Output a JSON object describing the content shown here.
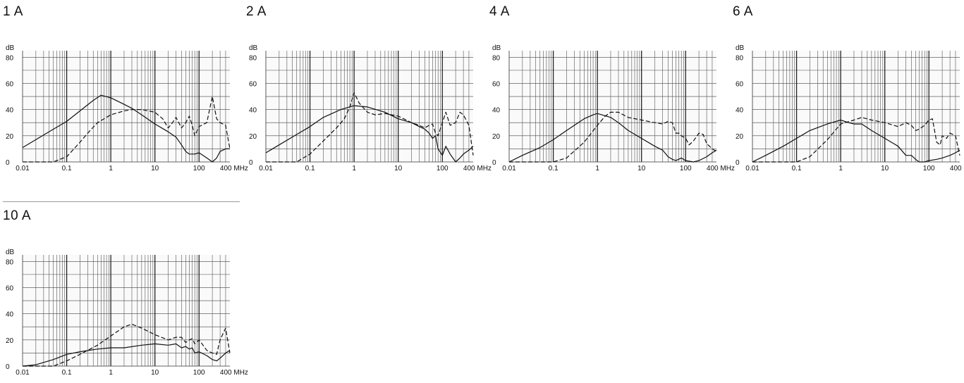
{
  "panels": [
    {
      "title": "1 A"
    },
    {
      "title": "2 A"
    },
    {
      "title": "4 A"
    },
    {
      "title": "6 A"
    },
    {
      "title": "10 A"
    }
  ],
  "chart_data": [
    {
      "type": "line",
      "title": "1 A",
      "ylabel": "dB",
      "xunit": "MHz",
      "xscale": "log",
      "xlim": [
        0.01,
        500
      ],
      "ylim": [
        0,
        85
      ],
      "xticks": [
        0.01,
        0.1,
        1,
        10,
        100,
        400
      ],
      "xtick_labels": [
        "0.01",
        "0.1",
        "1",
        "10",
        "100",
        "400 MHz"
      ],
      "yticks": [
        0,
        20,
        40,
        60,
        80
      ],
      "grid": true,
      "series": [
        {
          "style": "solid",
          "points": [
            [
              0.01,
              11
            ],
            [
              0.02,
              17
            ],
            [
              0.05,
              25
            ],
            [
              0.1,
              31
            ],
            [
              0.2,
              39
            ],
            [
              0.4,
              47
            ],
            [
              0.6,
              51
            ],
            [
              1,
              49
            ],
            [
              2,
              44
            ],
            [
              3,
              41
            ],
            [
              5,
              36
            ],
            [
              10,
              29
            ],
            [
              20,
              23
            ],
            [
              30,
              19
            ],
            [
              40,
              13
            ],
            [
              50,
              8
            ],
            [
              60,
              6
            ],
            [
              80,
              6
            ],
            [
              100,
              7
            ],
            [
              150,
              3
            ],
            [
              200,
              0
            ],
            [
              250,
              3
            ],
            [
              300,
              8
            ],
            [
              400,
              10
            ],
            [
              500,
              10
            ]
          ]
        },
        {
          "style": "dashed",
          "points": [
            [
              0.01,
              0
            ],
            [
              0.05,
              0
            ],
            [
              0.1,
              4
            ],
            [
              0.2,
              15
            ],
            [
              0.3,
              22
            ],
            [
              0.5,
              30
            ],
            [
              1,
              36
            ],
            [
              2,
              39
            ],
            [
              3,
              40
            ],
            [
              5,
              40
            ],
            [
              10,
              38
            ],
            [
              15,
              33
            ],
            [
              20,
              26
            ],
            [
              25,
              30
            ],
            [
              30,
              34
            ],
            [
              40,
              26
            ],
            [
              50,
              30
            ],
            [
              60,
              35
            ],
            [
              70,
              28
            ],
            [
              80,
              20
            ],
            [
              100,
              27
            ],
            [
              150,
              30
            ],
            [
              200,
              50
            ],
            [
              250,
              33
            ],
            [
              300,
              30
            ],
            [
              400,
              28
            ],
            [
              500,
              10
            ]
          ]
        }
      ]
    },
    {
      "type": "line",
      "title": "2 A",
      "ylabel": "dB",
      "xunit": "MHz",
      "xscale": "log",
      "xlim": [
        0.01,
        500
      ],
      "ylim": [
        0,
        85
      ],
      "xticks": [
        0.01,
        0.1,
        1,
        10,
        100,
        400
      ],
      "xtick_labels": [
        "0.01",
        "0.1",
        "1",
        "10",
        "100",
        "400 MHz"
      ],
      "yticks": [
        0,
        20,
        40,
        60,
        80
      ],
      "grid": true,
      "series": [
        {
          "style": "solid",
          "points": [
            [
              0.01,
              7
            ],
            [
              0.02,
              13
            ],
            [
              0.05,
              21
            ],
            [
              0.1,
              27
            ],
            [
              0.2,
              34
            ],
            [
              0.5,
              40
            ],
            [
              1,
              43
            ],
            [
              2,
              42
            ],
            [
              5,
              38
            ],
            [
              10,
              33
            ],
            [
              20,
              30
            ],
            [
              30,
              27
            ],
            [
              40,
              25
            ],
            [
              50,
              22
            ],
            [
              60,
              18
            ],
            [
              70,
              20
            ],
            [
              80,
              10
            ],
            [
              100,
              5
            ],
            [
              120,
              12
            ],
            [
              150,
              6
            ],
            [
              200,
              0
            ],
            [
              250,
              3
            ],
            [
              300,
              6
            ],
            [
              400,
              9
            ],
            [
              500,
              12
            ]
          ]
        },
        {
          "style": "dashed",
          "points": [
            [
              0.01,
              0
            ],
            [
              0.05,
              0
            ],
            [
              0.1,
              6
            ],
            [
              0.2,
              16
            ],
            [
              0.4,
              26
            ],
            [
              0.6,
              33
            ],
            [
              0.8,
              42
            ],
            [
              1,
              53
            ],
            [
              1.3,
              45
            ],
            [
              2,
              38
            ],
            [
              3,
              36
            ],
            [
              5,
              37
            ],
            [
              10,
              35
            ],
            [
              20,
              30
            ],
            [
              30,
              28
            ],
            [
              40,
              26
            ],
            [
              50,
              28
            ],
            [
              60,
              29
            ],
            [
              70,
              22
            ],
            [
              80,
              20
            ],
            [
              100,
              30
            ],
            [
              120,
              38
            ],
            [
              150,
              28
            ],
            [
              200,
              30
            ],
            [
              250,
              38
            ],
            [
              300,
              36
            ],
            [
              400,
              28
            ],
            [
              500,
              5
            ]
          ]
        }
      ]
    },
    {
      "type": "line",
      "title": "4 A",
      "ylabel": "dB",
      "xunit": "MHz",
      "xscale": "log",
      "xlim": [
        0.01,
        500
      ],
      "ylim": [
        0,
        85
      ],
      "xticks": [
        0.01,
        0.1,
        1,
        10,
        100,
        400
      ],
      "xtick_labels": [
        "0.01",
        "0.1",
        "1",
        "10",
        "100",
        "400 MHz"
      ],
      "yticks": [
        0,
        20,
        40,
        60,
        80
      ],
      "grid": true,
      "series": [
        {
          "style": "solid",
          "points": [
            [
              0.01,
              0
            ],
            [
              0.02,
              5
            ],
            [
              0.05,
              11
            ],
            [
              0.1,
              17
            ],
            [
              0.2,
              24
            ],
            [
              0.5,
              33
            ],
            [
              0.8,
              36
            ],
            [
              1,
              37
            ],
            [
              2,
              34
            ],
            [
              3,
              30
            ],
            [
              5,
              24
            ],
            [
              10,
              18
            ],
            [
              20,
              12
            ],
            [
              30,
              9
            ],
            [
              40,
              4
            ],
            [
              50,
              2
            ],
            [
              60,
              1
            ],
            [
              80,
              3
            ],
            [
              100,
              1
            ],
            [
              150,
              0
            ],
            [
              200,
              1
            ],
            [
              300,
              4
            ],
            [
              400,
              7
            ],
            [
              500,
              9
            ]
          ]
        },
        {
          "style": "dashed",
          "points": [
            [
              0.01,
              0
            ],
            [
              0.1,
              0
            ],
            [
              0.2,
              3
            ],
            [
              0.5,
              15
            ],
            [
              1,
              28
            ],
            [
              1.5,
              35
            ],
            [
              2,
              38
            ],
            [
              3,
              38
            ],
            [
              5,
              34
            ],
            [
              10,
              32
            ],
            [
              20,
              30
            ],
            [
              30,
              29
            ],
            [
              40,
              31
            ],
            [
              50,
              30
            ],
            [
              60,
              22
            ],
            [
              70,
              22
            ],
            [
              80,
              20
            ],
            [
              100,
              18
            ],
            [
              120,
              13
            ],
            [
              150,
              16
            ],
            [
              200,
              22
            ],
            [
              250,
              21
            ],
            [
              300,
              14
            ],
            [
              400,
              10
            ],
            [
              500,
              8
            ]
          ]
        }
      ]
    },
    {
      "type": "line",
      "title": "6 A",
      "ylabel": "dB",
      "xunit": "MHz",
      "xscale": "log",
      "xlim": [
        0.01,
        500
      ],
      "ylim": [
        0,
        85
      ],
      "xticks": [
        0.01,
        0.1,
        1,
        10,
        100,
        400
      ],
      "xtick_labels": [
        "0.01",
        "0.1",
        "1",
        "10",
        "100",
        "400 MHz"
      ],
      "yticks": [
        0,
        20,
        40,
        60,
        80
      ],
      "grid": true,
      "series": [
        {
          "style": "solid",
          "points": [
            [
              0.01,
              0
            ],
            [
              0.02,
              5
            ],
            [
              0.05,
              12
            ],
            [
              0.1,
              18
            ],
            [
              0.2,
              24
            ],
            [
              0.5,
              29
            ],
            [
              1,
              32
            ],
            [
              1.5,
              30
            ],
            [
              2,
              29
            ],
            [
              3,
              29
            ],
            [
              5,
              24
            ],
            [
              10,
              18
            ],
            [
              20,
              12
            ],
            [
              30,
              5
            ],
            [
              40,
              5
            ],
            [
              50,
              2
            ],
            [
              60,
              0
            ],
            [
              80,
              0
            ],
            [
              100,
              1
            ],
            [
              150,
              2
            ],
            [
              200,
              3
            ],
            [
              300,
              5
            ],
            [
              400,
              7
            ],
            [
              500,
              9
            ]
          ]
        },
        {
          "style": "dashed",
          "points": [
            [
              0.01,
              0
            ],
            [
              0.1,
              0
            ],
            [
              0.2,
              4
            ],
            [
              0.5,
              17
            ],
            [
              1,
              29
            ],
            [
              2,
              32
            ],
            [
              3,
              34
            ],
            [
              5,
              32
            ],
            [
              10,
              30
            ],
            [
              20,
              27
            ],
            [
              30,
              30
            ],
            [
              40,
              28
            ],
            [
              50,
              24
            ],
            [
              60,
              25
            ],
            [
              80,
              28
            ],
            [
              100,
              32
            ],
            [
              120,
              33
            ],
            [
              150,
              15
            ],
            [
              180,
              13
            ],
            [
              200,
              20
            ],
            [
              250,
              18
            ],
            [
              300,
              22
            ],
            [
              400,
              20
            ],
            [
              500,
              5
            ]
          ]
        }
      ]
    },
    {
      "type": "line",
      "title": "10 A",
      "ylabel": "dB",
      "xunit": "MHz",
      "xscale": "log",
      "xlim": [
        0.01,
        500
      ],
      "ylim": [
        0,
        85
      ],
      "xticks": [
        0.01,
        0.1,
        1,
        10,
        100,
        400
      ],
      "xtick_labels": [
        "0.01",
        "0.1",
        "1",
        "10",
        "100",
        "400 MHz"
      ],
      "yticks": [
        0,
        20,
        40,
        60,
        80
      ],
      "grid": true,
      "series": [
        {
          "style": "solid",
          "points": [
            [
              0.01,
              0
            ],
            [
              0.02,
              1
            ],
            [
              0.05,
              5
            ],
            [
              0.1,
              9
            ],
            [
              0.2,
              11
            ],
            [
              0.5,
              13
            ],
            [
              1,
              14
            ],
            [
              2,
              14
            ],
            [
              5,
              16
            ],
            [
              10,
              17
            ],
            [
              20,
              16
            ],
            [
              30,
              17
            ],
            [
              40,
              14
            ],
            [
              50,
              15
            ],
            [
              60,
              13
            ],
            [
              70,
              14
            ],
            [
              80,
              10
            ],
            [
              100,
              11
            ],
            [
              150,
              8
            ],
            [
              200,
              5
            ],
            [
              250,
              4
            ],
            [
              300,
              6
            ],
            [
              400,
              10
            ],
            [
              500,
              12
            ]
          ]
        },
        {
          "style": "dashed",
          "points": [
            [
              0.01,
              0
            ],
            [
              0.05,
              0
            ],
            [
              0.1,
              4
            ],
            [
              0.2,
              9
            ],
            [
              0.5,
              16
            ],
            [
              1,
              23
            ],
            [
              2,
              30
            ],
            [
              3,
              32
            ],
            [
              5,
              29
            ],
            [
              10,
              24
            ],
            [
              20,
              20
            ],
            [
              30,
              22
            ],
            [
              40,
              22
            ],
            [
              50,
              18
            ],
            [
              60,
              20
            ],
            [
              70,
              21
            ],
            [
              80,
              17
            ],
            [
              100,
              20
            ],
            [
              150,
              12
            ],
            [
              200,
              10
            ],
            [
              250,
              9
            ],
            [
              300,
              20
            ],
            [
              400,
              29
            ],
            [
              500,
              10
            ]
          ]
        }
      ]
    }
  ]
}
